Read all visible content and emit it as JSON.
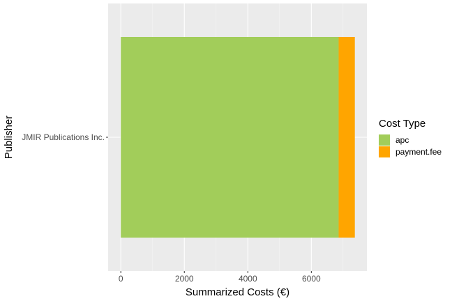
{
  "chart_data": {
    "type": "bar",
    "orientation": "horizontal",
    "stacked": true,
    "categories": [
      "JMIR Publications Inc."
    ],
    "series": [
      {
        "name": "apc",
        "values": [
          6860
        ],
        "color": "#A2CD5A"
      },
      {
        "name": "payment.fee",
        "values": [
          510
        ],
        "color": "#FFA500"
      }
    ],
    "xlabel": "Summarized Costs (€)",
    "ylabel": "Publisher",
    "xlim": [
      -400,
      7750
    ],
    "xticks": [
      0,
      2000,
      4000,
      6000
    ],
    "xtick_labels": [
      "0",
      "2000",
      "4000",
      "6000"
    ],
    "grid": true,
    "panel_background": "#EBEBEB",
    "legend": {
      "title": "Cost Type",
      "position": "right",
      "entries": [
        "apc",
        "payment.fee"
      ]
    }
  }
}
